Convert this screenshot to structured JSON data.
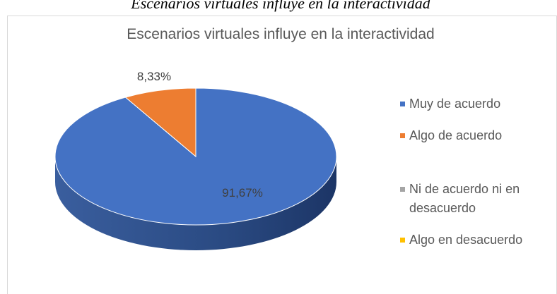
{
  "caption": "Escenarios virtuales influye en la interactividad",
  "chart_data": {
    "type": "pie",
    "title": "Escenarios virtuales influye en la interactividad",
    "categories": [
      "Muy de acuerdo",
      "Algo de acuerdo",
      "Ni de acuerdo ni en desacuerdo",
      "Algo en desacuerdo"
    ],
    "values": [
      91.67,
      8.33,
      0,
      0
    ],
    "value_labels": [
      "91,67%",
      "8,33%",
      null,
      null
    ],
    "colors": [
      "#4472c4",
      "#ed7d31",
      "#a5a5a5",
      "#ffc000"
    ],
    "legend": "right"
  }
}
